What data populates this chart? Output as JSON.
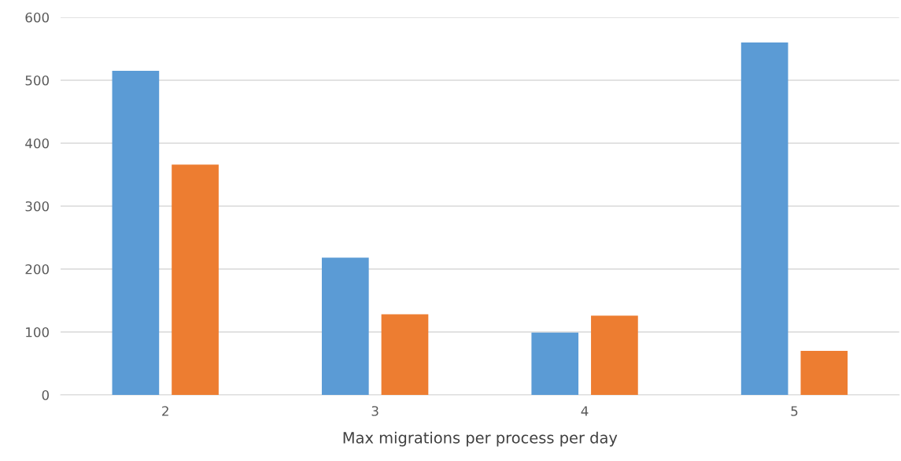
{
  "chart_data": {
    "type": "bar",
    "xlabel": "Max migrations per process per day",
    "categories": [
      "2",
      "3",
      "4",
      "5"
    ],
    "series": [
      {
        "color": "#5b9bd5",
        "values": [
          515,
          218,
          99,
          560
        ]
      },
      {
        "color": "#ed7d31",
        "values": [
          366,
          128,
          126,
          70
        ]
      }
    ],
    "ylim": [
      0,
      600
    ],
    "yticks": [
      0,
      100,
      200,
      300,
      400,
      500,
      600
    ],
    "grid": "y"
  }
}
